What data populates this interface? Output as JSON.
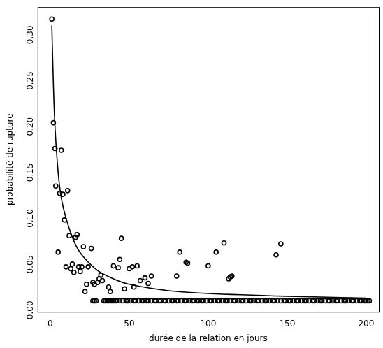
{
  "chart_data": {
    "type": "scatter",
    "x_label": "durée de la relation en jours",
    "y_label": "probabilité de rupture",
    "xlim": [
      -8,
      208
    ],
    "ylim": [
      -0.012,
      0.32
    ],
    "xticks": [
      0,
      50,
      100,
      150,
      200
    ],
    "yticks": [
      {
        "value": 0,
        "label": "0.00"
      },
      {
        "value": 0.05,
        "label": "0.05"
      },
      {
        "value": 0.1,
        "label": "0.10"
      },
      {
        "value": 0.15,
        "label": "0.15"
      },
      {
        "value": 0.2,
        "label": "0.20"
      },
      {
        "value": 0.25,
        "label": "0.25"
      },
      {
        "value": 0.3,
        "label": "0.30"
      }
    ],
    "grid": false,
    "series": [
      {
        "type": "scatter",
        "marker": "circle",
        "color": "#000000",
        "x": [
          1,
          2,
          3,
          3.5,
          5,
          6,
          7,
          8,
          9,
          10,
          11,
          12,
          13,
          14,
          15,
          16,
          17,
          18,
          19,
          20,
          21,
          22,
          23,
          24,
          26,
          27,
          28,
          30,
          31,
          32,
          33,
          37,
          38,
          40,
          43,
          44,
          45,
          47,
          50,
          52,
          53,
          55,
          57,
          60,
          62,
          64,
          80,
          82,
          86,
          87,
          100,
          105,
          110,
          113,
          114,
          115,
          143,
          146
        ],
        "values": [
          0.307,
          0.194,
          0.166,
          0.125,
          0.053,
          0.117,
          0.164,
          0.116,
          0.088,
          0.037,
          0.12,
          0.071,
          0.035,
          0.04,
          0.031,
          0.069,
          0.072,
          0.037,
          0.032,
          0.037,
          0.059,
          0.01,
          0.018,
          0.037,
          0.057,
          0.02,
          0.018,
          0.02,
          0.024,
          0.028,
          0.022,
          0.015,
          0.01,
          0.038,
          0.036,
          0.045,
          0.068,
          0.013,
          0.035,
          0.037,
          0.015,
          0.038,
          0.022,
          0.025,
          0.019,
          0.027,
          0.027,
          0.053,
          0.042,
          0.041,
          0.038,
          0.053,
          0.063,
          0.024,
          0.026,
          0.027,
          0.05,
          0.062
        ]
      },
      {
        "type": "scatter",
        "marker": "circle",
        "color": "#000000",
        "x": [
          27,
          28,
          29,
          34,
          35,
          36,
          37,
          38,
          39,
          40,
          41,
          42,
          44,
          46,
          48,
          49,
          51,
          53,
          54,
          56,
          58,
          59,
          61,
          62,
          64,
          66,
          67,
          69,
          70,
          72,
          73,
          75,
          77,
          78,
          80,
          81,
          83,
          85,
          86,
          88,
          90,
          91,
          93,
          94,
          96,
          97,
          99,
          101,
          102,
          104,
          106,
          107,
          109,
          111,
          112,
          114,
          116,
          117,
          119,
          121,
          122,
          124,
          126,
          127,
          129,
          131,
          132,
          134,
          136,
          137,
          139,
          141,
          142,
          144,
          146,
          148,
          149,
          151,
          152,
          154,
          156,
          157,
          159,
          161,
          162,
          164,
          166,
          167,
          169,
          171,
          172,
          174,
          176,
          177,
          179,
          181,
          182,
          184,
          186,
          187,
          189,
          191,
          192,
          194,
          196,
          197,
          199,
          200,
          201,
          202
        ],
        "values": [
          0,
          0,
          0,
          0,
          0,
          0,
          0,
          0,
          0,
          0,
          0,
          0,
          0,
          0,
          0,
          0,
          0,
          0,
          0,
          0,
          0,
          0,
          0,
          0,
          0,
          0,
          0,
          0,
          0,
          0,
          0,
          0,
          0,
          0,
          0,
          0,
          0,
          0,
          0,
          0,
          0,
          0,
          0,
          0,
          0,
          0,
          0,
          0,
          0,
          0,
          0,
          0,
          0,
          0,
          0,
          0,
          0,
          0,
          0,
          0,
          0,
          0,
          0,
          0,
          0,
          0,
          0,
          0,
          0,
          0,
          0,
          0,
          0,
          0,
          0,
          0,
          0,
          0,
          0,
          0,
          0,
          0,
          0,
          0,
          0,
          0,
          0,
          0,
          0,
          0,
          0,
          0,
          0,
          0,
          0,
          0,
          0,
          0,
          0,
          0,
          0,
          0,
          0,
          0,
          0,
          0,
          0,
          0,
          0,
          0
        ]
      },
      {
        "type": "line",
        "line_style": "solid",
        "color": "#000000",
        "x": [
          1,
          2,
          3,
          5,
          7,
          10,
          15,
          20,
          30,
          40,
          50,
          75,
          100,
          150,
          200
        ],
        "values": [
          0.3,
          0.235,
          0.19,
          0.14,
          0.112,
          0.09,
          0.065,
          0.05,
          0.033,
          0.024,
          0.018,
          0.011,
          0.008,
          0.005,
          0.003
        ]
      }
    ]
  }
}
